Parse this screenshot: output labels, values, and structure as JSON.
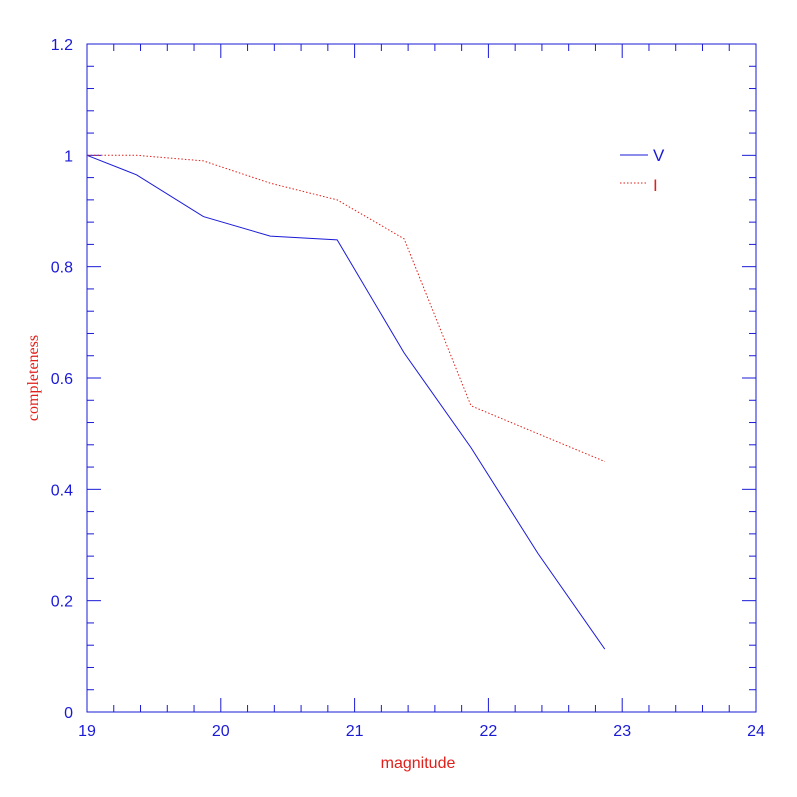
{
  "chart_data": {
    "type": "line",
    "title": "",
    "xlabel": "magnitude",
    "ylabel": "completeness",
    "xlim": [
      19,
      24
    ],
    "ylim": [
      0,
      1.2
    ],
    "x_ticks": [
      19,
      20,
      21,
      22,
      23,
      24
    ],
    "x_tick_labels": [
      "19",
      "20",
      "21",
      "22",
      "23",
      "24"
    ],
    "y_ticks": [
      0,
      0.2,
      0.4,
      0.6,
      0.8,
      1,
      1.2
    ],
    "y_tick_labels": [
      "0",
      "0.2",
      "0.4",
      "0.6",
      "0.8",
      "1",
      "1.2"
    ],
    "grid": false,
    "legend_position": "top-right",
    "series": [
      {
        "name": "V",
        "color": "#1a1ad6",
        "line_style": "solid",
        "x": [
          19.0,
          19.37,
          19.87,
          20.37,
          20.87,
          21.37,
          21.87,
          22.37,
          22.87
        ],
        "y": [
          1.0,
          0.965,
          0.89,
          0.855,
          0.848,
          0.645,
          0.475,
          0.285,
          0.113
        ]
      },
      {
        "name": "I",
        "color": "#e0201a",
        "line_style": "dotted",
        "x": [
          19.0,
          19.37,
          19.87,
          20.37,
          20.87,
          21.37,
          21.87,
          22.37,
          22.87
        ],
        "y": [
          1.0,
          1.0,
          0.99,
          0.95,
          0.92,
          0.85,
          0.55,
          0.5,
          0.45
        ]
      }
    ]
  },
  "colors": {
    "axis": "#1a1ad6",
    "tick_labels": "#1a1ad6",
    "axis_titles": "#e0201a"
  }
}
